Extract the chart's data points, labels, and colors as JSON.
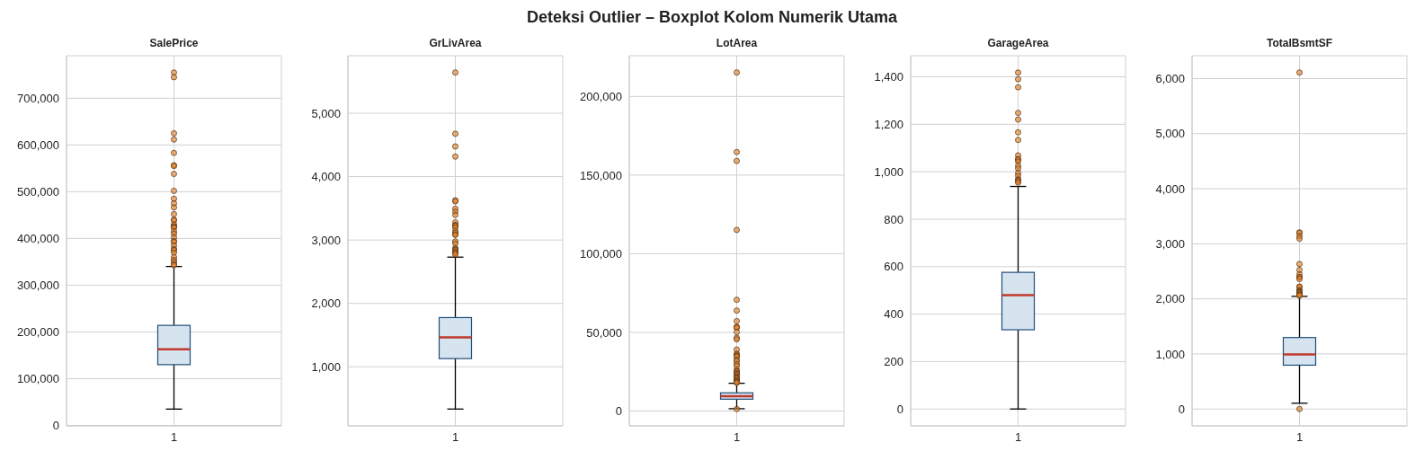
{
  "chart_data": [
    {
      "type": "box",
      "title": "SalePrice",
      "annotations": [
        "Deteksi Outlier – Boxplot Kolom Numerik Utama"
      ],
      "categories": [
        "1"
      ],
      "color": "#d6e4f0",
      "grid": true,
      "ylim": [
        -1000,
        791000
      ],
      "yticks": [
        {
          "value": 0,
          "label": "0"
        },
        {
          "value": 100000,
          "label": "100,000"
        },
        {
          "value": 200000,
          "label": "200,000"
        },
        {
          "value": 300000,
          "label": "300,000"
        },
        {
          "value": 400000,
          "label": "400,000"
        },
        {
          "value": 500000,
          "label": "500,000"
        },
        {
          "value": 600000,
          "label": "600,000"
        },
        {
          "value": 700000,
          "label": "700,000"
        }
      ],
      "boxes": [
        {
          "low": 34900,
          "q1": 129975,
          "median": 163000,
          "q3": 214000,
          "high": 340000,
          "outliers": [
            755000,
            745000,
            625000,
            611657,
            582933,
            556581,
            555000,
            538000,
            501837,
            485000,
            475000,
            466500,
            451950,
            440000,
            438780,
            430000,
            426000,
            424870,
            423000,
            415298,
            410000,
            402000,
            394617,
            392500,
            385000,
            377500,
            375000,
            369900,
            360000,
            354000,
            350000,
            345000,
            342643
          ]
        }
      ]
    },
    {
      "type": "box",
      "title": "GrLivArea",
      "categories": [
        "1"
      ],
      "color": "#d6e4f0",
      "grid": true,
      "ylim": [
        69,
        5907
      ],
      "yticks": [
        {
          "value": 1000,
          "label": "1,000"
        },
        {
          "value": 2000,
          "label": "2,000"
        },
        {
          "value": 3000,
          "label": "3,000"
        },
        {
          "value": 4000,
          "label": "4,000"
        },
        {
          "value": 5000,
          "label": "5,000"
        }
      ],
      "boxes": [
        {
          "low": 334,
          "q1": 1130,
          "median": 1464,
          "q3": 1777,
          "high": 2730,
          "outliers": [
            5642,
            4676,
            4476,
            4316,
            3627,
            3608,
            3493,
            3447,
            3395,
            3279,
            3238,
            3228,
            3222,
            3194,
            3140,
            3112,
            3086,
            3082,
            2978,
            2945,
            2872,
            2854,
            2844,
            2822,
            2810,
            2792,
            2775
          ]
        }
      ]
    },
    {
      "type": "box",
      "title": "LotArea",
      "categories": [
        "1"
      ],
      "color": "#d6e4f0",
      "grid": true,
      "ylim": [
        -9400,
        225900
      ],
      "yticks": [
        {
          "value": 0,
          "label": "0"
        },
        {
          "value": 50000,
          "label": "50,000"
        },
        {
          "value": 100000,
          "label": "100,000"
        },
        {
          "value": 150000,
          "label": "150,000"
        },
        {
          "value": 200000,
          "label": "200,000"
        }
      ],
      "boxes": [
        {
          "low": 1491,
          "q1": 7554,
          "median": 9478,
          "q3": 11602,
          "high": 17671,
          "outliers": [
            1300,
            215245,
            164660,
            159000,
            115149,
            70761,
            63887,
            57200,
            53504,
            53227,
            53107,
            50271,
            46589,
            45600,
            39104,
            36500,
            35760,
            35133,
            34650,
            32668,
            31770,
            29959,
            28698,
            26178,
            25419,
            25095,
            24090,
            23595,
            22950,
            21930,
            21384,
            20896,
            20781,
            19690,
            19378,
            18890,
            18450,
            17920
          ]
        }
      ]
    },
    {
      "type": "box",
      "title": "GarageArea",
      "categories": [
        "1"
      ],
      "color": "#d6e4f0",
      "grid": true,
      "ylim": [
        -71,
        1489
      ],
      "yticks": [
        {
          "value": 0,
          "label": "0"
        },
        {
          "value": 200,
          "label": "200"
        },
        {
          "value": 400,
          "label": "400"
        },
        {
          "value": 600,
          "label": "600"
        },
        {
          "value": 800,
          "label": "800"
        },
        {
          "value": 1000,
          "label": "1,000"
        },
        {
          "value": 1200,
          "label": "1,200"
        },
        {
          "value": 1400,
          "label": "1,400"
        }
      ],
      "boxes": [
        {
          "low": 0,
          "q1": 334,
          "median": 480,
          "q3": 576,
          "high": 938,
          "outliers": [
            1418,
            1390,
            1356,
            1248,
            1220,
            1166,
            1134,
            1069,
            1053,
            1052,
            1043,
            1025,
            1014,
            995,
            983,
            968,
            966,
            960,
            954
          ]
        }
      ]
    },
    {
      "type": "box",
      "title": "TotalBsmtSF",
      "categories": [
        "1"
      ],
      "color": "#d6e4f0",
      "grid": true,
      "ylim": [
        -306,
        6416
      ],
      "yticks": [
        {
          "value": 0,
          "label": "0"
        },
        {
          "value": 1000,
          "label": "1,000"
        },
        {
          "value": 2000,
          "label": "2,000"
        },
        {
          "value": 3000,
          "label": "3,000"
        },
        {
          "value": 4000,
          "label": "4,000"
        },
        {
          "value": 5000,
          "label": "5,000"
        },
        {
          "value": 6000,
          "label": "6,000"
        }
      ],
      "boxes": [
        {
          "low": 105,
          "q1": 796,
          "median": 992,
          "q3": 1298,
          "high": 2046,
          "outliers": [
            0,
            6110,
            3206,
            3200,
            3138,
            3094,
            2633,
            2524,
            2444,
            2396,
            2392,
            2360,
            2223,
            2217,
            2158,
            2153,
            2136,
            2121,
            2110,
            2109,
            2078,
            2077,
            2076,
            2061
          ]
        }
      ]
    }
  ]
}
